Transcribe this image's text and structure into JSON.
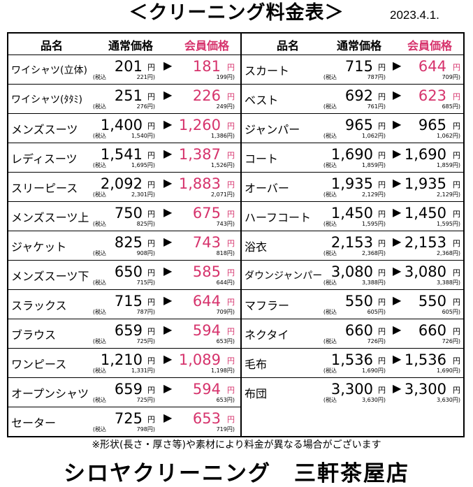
{
  "title": "＜クリーニング料金表＞",
  "date": "2023.4.1.",
  "headers": {
    "name": "品名",
    "regular": "通常価格",
    "member": "会員価格"
  },
  "yen": "円",
  "tax_prefix": "(税込",
  "arrow": "▶",
  "left_items": [
    {
      "name": "ワイシャツ(立体)",
      "regular": "201",
      "regular_tax": "221",
      "member": "181",
      "member_tax": "199",
      "member_colored": true
    },
    {
      "name": "ワイシャツ(ﾀﾀﾐ)",
      "regular": "251",
      "regular_tax": "276",
      "member": "226",
      "member_tax": "249",
      "member_colored": true
    },
    {
      "name": "メンズスーツ",
      "regular": "1,400",
      "regular_tax": "1,540",
      "member": "1,260",
      "member_tax": "1,386",
      "member_colored": true
    },
    {
      "name": "レディスーツ",
      "regular": "1,541",
      "regular_tax": "1,695",
      "member": "1,387",
      "member_tax": "1,526",
      "member_colored": true
    },
    {
      "name": "スリーピース",
      "regular": "2,092",
      "regular_tax": "2,301",
      "member": "1,883",
      "member_tax": "2,071",
      "member_colored": true
    },
    {
      "name": "メンズスーツ上",
      "regular": "750",
      "regular_tax": "825",
      "member": "675",
      "member_tax": "743",
      "member_colored": true
    },
    {
      "name": "ジャケット",
      "regular": "825",
      "regular_tax": "908",
      "member": "743",
      "member_tax": "818",
      "member_colored": true
    },
    {
      "name": "メンズスーツ下",
      "regular": "650",
      "regular_tax": "715",
      "member": "585",
      "member_tax": "644",
      "member_colored": true
    },
    {
      "name": "スラックス",
      "regular": "715",
      "regular_tax": "787",
      "member": "644",
      "member_tax": "709",
      "member_colored": true
    },
    {
      "name": "ブラウス",
      "regular": "659",
      "regular_tax": "725",
      "member": "594",
      "member_tax": "653",
      "member_colored": true
    },
    {
      "name": "ワンピース",
      "regular": "1,210",
      "regular_tax": "1,331",
      "member": "1,089",
      "member_tax": "1,198",
      "member_colored": true
    },
    {
      "name": "オープンシャツ",
      "regular": "659",
      "regular_tax": "725",
      "member": "594",
      "member_tax": "653",
      "member_colored": true
    },
    {
      "name": "セーター",
      "regular": "725",
      "regular_tax": "798",
      "member": "653",
      "member_tax": "719",
      "member_colored": true
    }
  ],
  "right_items": [
    {
      "name": "スカート",
      "regular": "715",
      "regular_tax": "787",
      "member": "644",
      "member_tax": "709",
      "member_colored": true
    },
    {
      "name": "ベスト",
      "regular": "692",
      "regular_tax": "761",
      "member": "623",
      "member_tax": "685",
      "member_colored": true
    },
    {
      "name": "ジャンパー",
      "regular": "965",
      "regular_tax": "1,062",
      "member": "965",
      "member_tax": "1,062",
      "member_colored": false
    },
    {
      "name": "コート",
      "regular": "1,690",
      "regular_tax": "1,859",
      "member": "1,690",
      "member_tax": "1,859",
      "member_colored": false
    },
    {
      "name": "オーバー",
      "regular": "1,935",
      "regular_tax": "2,129",
      "member": "1,935",
      "member_tax": "2,129",
      "member_colored": false
    },
    {
      "name": "ハーフコート",
      "regular": "1,450",
      "regular_tax": "1,595",
      "member": "1,450",
      "member_tax": "1,595",
      "member_colored": false
    },
    {
      "name": "浴衣",
      "regular": "2,153",
      "regular_tax": "2,368",
      "member": "2,153",
      "member_tax": "2,368",
      "member_colored": false
    },
    {
      "name": "ダウンジャンパー",
      "regular": "3,080",
      "regular_tax": "3,388",
      "member": "3,080",
      "member_tax": "3,388",
      "member_colored": false
    },
    {
      "name": "マフラー",
      "regular": "550",
      "regular_tax": "605",
      "member": "550",
      "member_tax": "605",
      "member_colored": false
    },
    {
      "name": "ネクタイ",
      "regular": "660",
      "regular_tax": "726",
      "member": "660",
      "member_tax": "726",
      "member_colored": false
    },
    {
      "name": "毛布",
      "regular": "1,536",
      "regular_tax": "1,690",
      "member": "1,536",
      "member_tax": "1,690",
      "member_colored": false
    },
    {
      "name": "布団",
      "regular": "3,300",
      "regular_tax": "3,630",
      "member": "3,300",
      "member_tax": "3,630",
      "member_colored": false
    }
  ],
  "note": "※形状(長さ・厚さ等)や素材により料金が異なる場合がございます",
  "shop_name": "シロヤクリーニング　三軒茶屋店",
  "colors": {
    "member_accent": "#d6336c"
  }
}
